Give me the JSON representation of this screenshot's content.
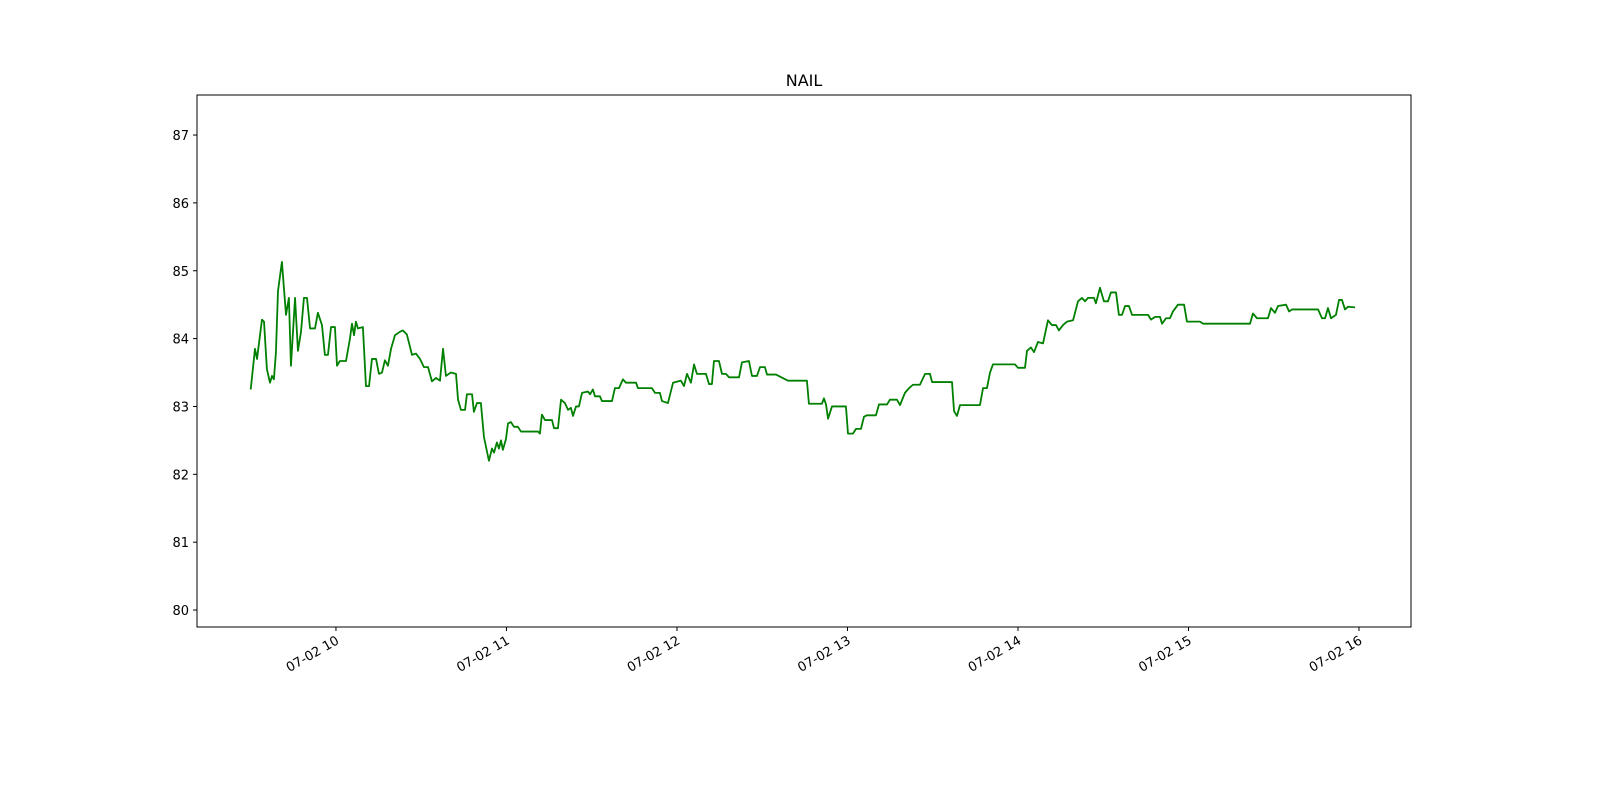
{
  "chart_data": {
    "type": "line",
    "title": "NAIL",
    "color": "#008000",
    "x": [
      9.5,
      9.525,
      9.537,
      9.566,
      9.578,
      9.595,
      9.613,
      9.625,
      9.636,
      9.648,
      9.66,
      9.683,
      9.707,
      9.724,
      9.736,
      9.76,
      9.777,
      9.795,
      9.812,
      9.83,
      9.848,
      9.877,
      9.894,
      9.918,
      9.935,
      9.953,
      9.971,
      9.994,
      10.006,
      10.023,
      10.059,
      10.082,
      10.094,
      10.106,
      10.117,
      10.129,
      10.158,
      10.176,
      10.194,
      10.211,
      10.235,
      10.252,
      10.27,
      10.287,
      10.305,
      10.323,
      10.346,
      10.375,
      10.393,
      10.416,
      10.446,
      10.469,
      10.493,
      10.516,
      10.54,
      10.563,
      10.587,
      10.61,
      10.628,
      10.645,
      10.674,
      10.704,
      10.716,
      10.733,
      10.757,
      10.768,
      10.798,
      10.809,
      10.827,
      10.85,
      10.868,
      10.897,
      10.915,
      10.927,
      10.944,
      10.956,
      10.968,
      10.979,
      10.997,
      11.009,
      11.026,
      11.044,
      11.067,
      11.085,
      11.185,
      11.196,
      11.208,
      11.226,
      11.267,
      11.279,
      11.302,
      11.32,
      11.343,
      11.361,
      11.378,
      11.39,
      11.408,
      11.425,
      11.443,
      11.478,
      11.49,
      11.507,
      11.519,
      11.548,
      11.56,
      11.619,
      11.636,
      11.66,
      11.683,
      11.701,
      11.76,
      11.771,
      11.853,
      11.871,
      11.9,
      11.912,
      11.947,
      11.977,
      12.023,
      12.041,
      12.059,
      12.082,
      12.1,
      12.117,
      12.17,
      12.188,
      12.205,
      12.217,
      12.246,
      12.264,
      12.287,
      12.305,
      12.364,
      12.381,
      12.422,
      12.44,
      12.469,
      12.487,
      12.516,
      12.528,
      12.581,
      12.651,
      12.762,
      12.774,
      12.85,
      12.862,
      12.874,
      12.886,
      12.909,
      12.991,
      13.003,
      13.032,
      13.05,
      13.079,
      13.097,
      13.114,
      13.167,
      13.185,
      13.232,
      13.249,
      13.29,
      13.308,
      13.337,
      13.361,
      13.384,
      13.425,
      13.455,
      13.484,
      13.496,
      13.613,
      13.625,
      13.642,
      13.66,
      13.777,
      13.795,
      13.818,
      13.836,
      13.853,
      13.982,
      14.0,
      14.041,
      14.053,
      14.076,
      14.094,
      14.117,
      14.147,
      14.176,
      14.199,
      14.223,
      14.24,
      14.264,
      14.287,
      14.323,
      14.352,
      14.375,
      14.393,
      14.411,
      14.446,
      14.457,
      14.481,
      14.504,
      14.528,
      14.545,
      14.575,
      14.592,
      14.61,
      14.628,
      14.651,
      14.669,
      14.763,
      14.78,
      14.804,
      14.833,
      14.845,
      14.868,
      14.891,
      14.909,
      14.938,
      14.974,
      14.991,
      15.067,
      15.085,
      15.361,
      15.378,
      15.402,
      15.466,
      15.484,
      15.507,
      15.525,
      15.572,
      15.59,
      15.607,
      15.76,
      15.783,
      15.801,
      15.818,
      15.836,
      15.865,
      15.883,
      15.9,
      15.918,
      15.936,
      15.977
    ],
    "values": [
      83.25,
      83.85,
      83.7,
      84.28,
      84.25,
      83.55,
      83.35,
      83.45,
      83.4,
      83.8,
      84.7,
      85.13,
      84.35,
      84.6,
      83.6,
      84.6,
      83.82,
      84.1,
      84.6,
      84.6,
      84.15,
      84.15,
      84.38,
      84.2,
      83.76,
      83.76,
      84.17,
      84.17,
      83.6,
      83.67,
      83.67,
      84.0,
      84.22,
      84.05,
      84.25,
      84.15,
      84.17,
      83.3,
      83.3,
      83.7,
      83.7,
      83.48,
      83.5,
      83.68,
      83.6,
      83.85,
      84.05,
      84.1,
      84.12,
      84.06,
      83.76,
      83.78,
      83.7,
      83.58,
      83.58,
      83.37,
      83.42,
      83.38,
      83.85,
      83.45,
      83.5,
      83.48,
      83.1,
      82.95,
      82.95,
      83.18,
      83.18,
      82.92,
      83.05,
      83.05,
      82.55,
      82.2,
      82.38,
      82.32,
      82.47,
      82.38,
      82.5,
      82.36,
      82.52,
      82.75,
      82.77,
      82.7,
      82.7,
      82.63,
      82.63,
      82.6,
      82.88,
      82.8,
      82.8,
      82.68,
      82.68,
      83.1,
      83.05,
      82.95,
      82.98,
      82.86,
      83.0,
      83.0,
      83.2,
      83.22,
      83.18,
      83.25,
      83.15,
      83.15,
      83.08,
      83.08,
      83.27,
      83.27,
      83.4,
      83.35,
      83.35,
      83.27,
      83.27,
      83.2,
      83.2,
      83.08,
      83.05,
      83.35,
      83.38,
      83.3,
      83.48,
      83.35,
      83.62,
      83.48,
      83.48,
      83.33,
      83.33,
      83.67,
      83.67,
      83.48,
      83.48,
      83.43,
      83.43,
      83.65,
      83.67,
      83.45,
      83.45,
      83.58,
      83.58,
      83.47,
      83.47,
      83.38,
      83.38,
      83.04,
      83.04,
      83.12,
      83.03,
      82.82,
      83.0,
      83.0,
      82.6,
      82.6,
      82.67,
      82.67,
      82.85,
      82.87,
      82.87,
      83.03,
      83.03,
      83.1,
      83.1,
      83.02,
      83.2,
      83.27,
      83.32,
      83.32,
      83.48,
      83.48,
      83.36,
      83.36,
      82.93,
      82.86,
      83.02,
      83.02,
      83.27,
      83.27,
      83.5,
      83.62,
      83.62,
      83.57,
      83.57,
      83.82,
      83.87,
      83.8,
      83.95,
      83.93,
      84.27,
      84.2,
      84.2,
      84.12,
      84.2,
      84.25,
      84.27,
      84.55,
      84.6,
      84.55,
      84.6,
      84.6,
      84.52,
      84.75,
      84.55,
      84.55,
      84.68,
      84.68,
      84.35,
      84.35,
      84.48,
      84.48,
      84.35,
      84.35,
      84.28,
      84.32,
      84.32,
      84.22,
      84.3,
      84.3,
      84.4,
      84.5,
      84.5,
      84.25,
      84.25,
      84.22,
      84.22,
      84.37,
      84.3,
      84.3,
      84.45,
      84.38,
      84.48,
      84.5,
      84.4,
      84.43,
      84.43,
      84.3,
      84.3,
      84.45,
      84.3,
      84.35,
      84.57,
      84.57,
      84.43,
      84.47,
      84.46
    ],
    "xlim": [
      9.185,
      16.305
    ],
    "xticks": [
      {
        "value": 10,
        "label": "07-02 10"
      },
      {
        "value": 11,
        "label": "07-02 11"
      },
      {
        "value": 12,
        "label": "07-02 12"
      },
      {
        "value": 13,
        "label": "07-02 13"
      },
      {
        "value": 14,
        "label": "07-02 14"
      },
      {
        "value": 15,
        "label": "07-02 15"
      },
      {
        "value": 16,
        "label": "07-02 16"
      }
    ],
    "ylim": [
      79.75,
      87.59
    ],
    "yticks": [
      80,
      81,
      82,
      83,
      84,
      85,
      86,
      87
    ],
    "grid": false
  }
}
